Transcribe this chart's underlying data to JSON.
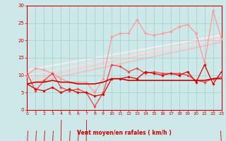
{
  "x": [
    0,
    1,
    2,
    3,
    4,
    5,
    6,
    7,
    8,
    9,
    10,
    11,
    12,
    13,
    14,
    15,
    16,
    17,
    18,
    19,
    20,
    21,
    22,
    23
  ],
  "series": [
    {
      "y": [
        7.5,
        6,
        5.5,
        6.5,
        5,
        6,
        5,
        5,
        4,
        4.5,
        9,
        9,
        9.5,
        9,
        11,
        10.5,
        10,
        10.5,
        10,
        11,
        8,
        13,
        7.5,
        11
      ],
      "color": "#dd0000",
      "lw": 0.9,
      "marker": "D",
      "ms": 1.8,
      "zorder": 5
    },
    {
      "y": [
        10.5,
        5.5,
        8.5,
        10.5,
        6.5,
        5.5,
        6,
        5,
        1,
        5,
        13,
        12.5,
        11,
        12,
        10.5,
        11,
        10.5,
        10.5,
        10.5,
        10,
        8.5,
        8,
        9,
        9.5
      ],
      "color": "#ee4444",
      "lw": 0.9,
      "marker": "D",
      "ms": 1.8,
      "zorder": 4
    },
    {
      "y": [
        10,
        12,
        11.5,
        10.5,
        9,
        8,
        8,
        8,
        5,
        9,
        21,
        22,
        22,
        26,
        22,
        21.5,
        22,
        22.5,
        24,
        24.5,
        22,
        13.5,
        28.5,
        20.5
      ],
      "color": "#ff9999",
      "lw": 0.9,
      "marker": "D",
      "ms": 1.8,
      "zorder": 3
    },
    {
      "y": [
        7.5,
        8,
        8,
        8.5,
        8,
        8,
        7.5,
        7.5,
        7.5,
        8,
        9,
        9,
        8.5,
        8.5,
        8.5,
        8.5,
        8.5,
        8.5,
        8.5,
        8.5,
        8.5,
        8.5,
        9,
        9
      ],
      "color": "#cc0000",
      "lw": 1.2,
      "marker": null,
      "ms": 0,
      "zorder": 6
    }
  ],
  "trend_lines": [
    {
      "x0": 0,
      "y0": 7.5,
      "x1": 23,
      "y1": 19.5,
      "color": "#ffbbbb",
      "lw": 1.2
    },
    {
      "x0": 0,
      "y0": 8.5,
      "x1": 23,
      "y1": 21.0,
      "color": "#ffcccc",
      "lw": 1.2
    },
    {
      "x0": 0,
      "y0": 10.0,
      "x1": 23,
      "y1": 20.5,
      "color": "#ffdddd",
      "lw": 1.2
    },
    {
      "x0": 0,
      "y0": 11.5,
      "x1": 23,
      "y1": 21.5,
      "color": "#ffeeee",
      "lw": 1.2
    }
  ],
  "arrow_angles": [
    225,
    225,
    225,
    225,
    200,
    225,
    225,
    200,
    270,
    315,
    45,
    45,
    45,
    45,
    45,
    45,
    45,
    45,
    45,
    45,
    45,
    45,
    90,
    135
  ],
  "xlabel": "Vent moyen/en rafales ( km/h )",
  "xlim": [
    0,
    23
  ],
  "ylim": [
    0,
    30
  ],
  "yticks": [
    0,
    5,
    10,
    15,
    20,
    25,
    30
  ],
  "xticks": [
    0,
    1,
    2,
    3,
    4,
    5,
    6,
    7,
    8,
    9,
    10,
    11,
    12,
    13,
    14,
    15,
    16,
    17,
    18,
    19,
    20,
    21,
    22,
    23
  ],
  "bg_color": "#cce8e8",
  "grid_color": "#aacccc",
  "tick_color": "#cc0000",
  "label_color": "#cc0000",
  "axis_color": "#cc0000",
  "arrow_color": "#cc0000"
}
